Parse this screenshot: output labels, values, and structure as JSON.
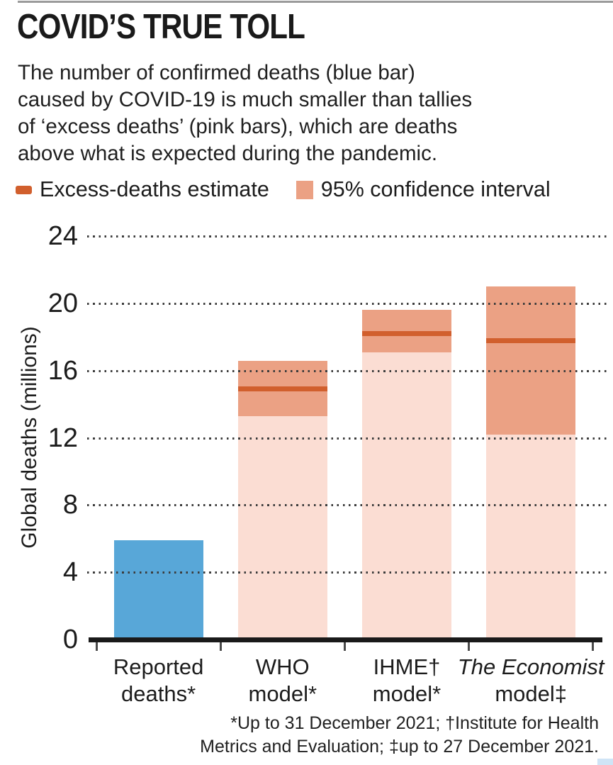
{
  "header": {
    "title": "COVID’S TRUE TOLL",
    "subtitle_lines": [
      "The number of confirmed deaths (blue bar)",
      "caused by COVID-19 is much smaller than tallies",
      "of ‘excess deaths’ (pink bars), which are deaths",
      "above what is expected during the pandemic."
    ]
  },
  "legend": [
    {
      "label": "Excess-deaths estimate",
      "swatch": "dash"
    },
    {
      "label": "95% confidence interval",
      "swatch": "square"
    }
  ],
  "colors": {
    "reported_bar": "#58a7d8",
    "ci_fill": "#fbddd3",
    "ci_band": "#eba184",
    "estimate_line": "#d15f2d",
    "axis": "#1a1a1a",
    "top_rule": "#9b9b9b"
  },
  "chart_data": {
    "type": "bar",
    "title": "COVID’S TRUE TOLL",
    "xlabel": "",
    "ylabel": "Global deaths (millions)",
    "ylim": [
      0,
      24
    ],
    "yticks": [
      0,
      4,
      8,
      12,
      16,
      20,
      24
    ],
    "grid": "dotted-horizontal",
    "legend_position": "top",
    "categories": [
      "Reported deaths*",
      "WHO model*",
      "IHME† model*",
      "The Economist model‡"
    ],
    "bars": [
      {
        "category_lines": [
          "Reported",
          "deaths*"
        ],
        "italic": false,
        "kind": "reported",
        "value": 5.9
      },
      {
        "category_lines": [
          "WHO",
          "model*"
        ],
        "italic": false,
        "kind": "excess",
        "estimate": 14.9,
        "ci_low": 13.3,
        "ci_high": 16.6
      },
      {
        "category_lines": [
          "IHME†",
          "model*"
        ],
        "italic": false,
        "kind": "excess",
        "estimate": 18.2,
        "ci_low": 17.1,
        "ci_high": 19.6
      },
      {
        "category_lines": [
          "The Economist",
          "model‡"
        ],
        "italic": true,
        "kind": "excess",
        "estimate": 17.8,
        "ci_low": 12.2,
        "ci_high": 21.0
      }
    ]
  },
  "footnote": {
    "lines": [
      "*Up to 31 December 2021; †Institute for Health",
      "Metrics and Evaluation; ‡up to 27 December 2021."
    ]
  }
}
